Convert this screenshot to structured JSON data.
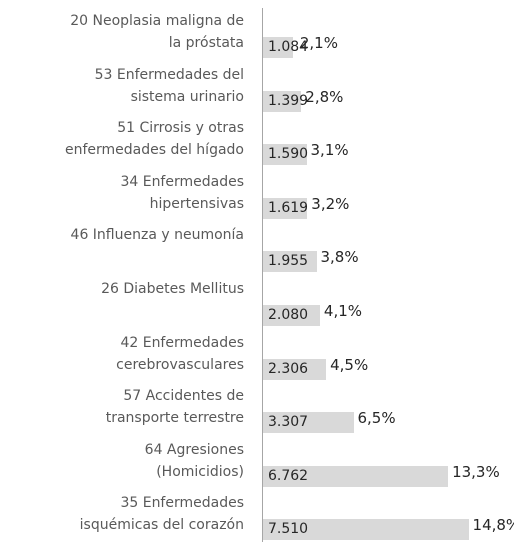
{
  "chart_data": {
    "type": "bar",
    "orientation": "horizontal",
    "categories": [
      "20 Neoplasia maligna de\nla próstata",
      "53 Enfermedades del\nsistema urinario",
      "51 Cirrosis y otras\nenfermedades del hígado",
      "34 Enfermedades\nhipertensivas",
      "46 Influenza y neumonía",
      "26 Diabetes Mellitus",
      "42 Enfermedades\ncerebrovasculares",
      "57 Accidentes de\ntransporte terrestre",
      "64 Agresiones\n(Homicidios)",
      "35 Enfermedades\nisquémicas del corazón"
    ],
    "values": [
      1084,
      1399,
      1590,
      1619,
      1955,
      2080,
      2306,
      3307,
      6762,
      7510
    ],
    "value_labels": [
      "1.084",
      "1.399",
      "1.590",
      "1.619",
      "1.955",
      "2.080",
      "2.306",
      "3.307",
      "6.762",
      "7.510"
    ],
    "shares": [
      2.1,
      2.8,
      3.1,
      3.2,
      3.8,
      4.1,
      4.5,
      6.5,
      13.3,
      14.8
    ],
    "share_labels": [
      "2,1%",
      "2,8%",
      "3,1%",
      "3,2%",
      "3,8%",
      "4,1%",
      "4,5%",
      "6,5%",
      "13,3%",
      "14,8%"
    ],
    "color": "#d9d9d9",
    "xlim": [
      0,
      7600
    ]
  }
}
